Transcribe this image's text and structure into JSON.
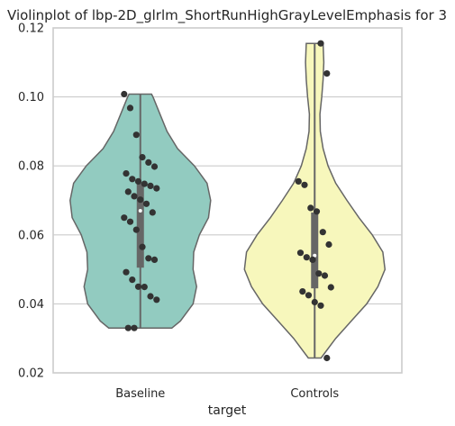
{
  "chart_data": {
    "type": "violin",
    "title": "Violinplot of lbp-2D_glrlm_ShortRunHighGrayLevelEmphasis for 3",
    "xlabel": "target",
    "ylabel": "",
    "ylim": [
      0.02,
      0.12
    ],
    "yticks": [
      "0.02",
      "0.04",
      "0.06",
      "0.08",
      "0.10",
      "0.12"
    ],
    "categories": [
      "Baseline",
      "Controls"
    ],
    "grid": true,
    "colors": {
      "Baseline": "#92cbc0",
      "Controls": "#f7f7bc"
    },
    "series": [
      {
        "category": "Baseline",
        "min": 0.033,
        "q1": 0.0505,
        "median": 0.067,
        "q3": 0.075,
        "max": 0.1008,
        "points": [
          0.1008,
          0.0968,
          0.089,
          0.0825,
          0.081,
          0.0798,
          0.0778,
          0.0762,
          0.0755,
          0.0748,
          0.0742,
          0.0735,
          0.0725,
          0.0712,
          0.0702,
          0.069,
          0.0665,
          0.065,
          0.0638,
          0.0615,
          0.0565,
          0.0532,
          0.0528,
          0.0492,
          0.047,
          0.045,
          0.0449,
          0.0422,
          0.0412,
          0.033,
          0.033
        ],
        "density": [
          [
            0.033,
            0.45
          ],
          [
            0.035,
            0.57
          ],
          [
            0.04,
            0.75
          ],
          [
            0.045,
            0.8
          ],
          [
            0.05,
            0.75
          ],
          [
            0.055,
            0.76
          ],
          [
            0.06,
            0.84
          ],
          [
            0.065,
            0.97
          ],
          [
            0.07,
            1.0
          ],
          [
            0.075,
            0.95
          ],
          [
            0.08,
            0.77
          ],
          [
            0.085,
            0.53
          ],
          [
            0.09,
            0.38
          ],
          [
            0.095,
            0.28
          ],
          [
            0.1,
            0.18
          ],
          [
            0.1008,
            0.16
          ]
        ]
      },
      {
        "category": "Controls",
        "min": 0.0243,
        "q1": 0.0445,
        "median": 0.054,
        "q3": 0.0665,
        "max": 0.1155,
        "points": [
          0.1155,
          0.1068,
          0.0755,
          0.0745,
          0.0678,
          0.0668,
          0.0608,
          0.0572,
          0.0548,
          0.0535,
          0.0528,
          0.0488,
          0.0482,
          0.0448,
          0.0436,
          0.0425,
          0.0405,
          0.0395,
          0.0243
        ],
        "density": [
          [
            0.0243,
            0.09
          ],
          [
            0.03,
            0.3
          ],
          [
            0.035,
            0.52
          ],
          [
            0.04,
            0.74
          ],
          [
            0.045,
            0.9
          ],
          [
            0.05,
            1.0
          ],
          [
            0.055,
            0.97
          ],
          [
            0.06,
            0.82
          ],
          [
            0.065,
            0.63
          ],
          [
            0.07,
            0.46
          ],
          [
            0.075,
            0.3
          ],
          [
            0.08,
            0.19
          ],
          [
            0.085,
            0.12
          ],
          [
            0.09,
            0.08
          ],
          [
            0.095,
            0.075
          ],
          [
            0.1,
            0.1
          ],
          [
            0.105,
            0.12
          ],
          [
            0.11,
            0.13
          ],
          [
            0.1155,
            0.12
          ]
        ]
      }
    ]
  }
}
